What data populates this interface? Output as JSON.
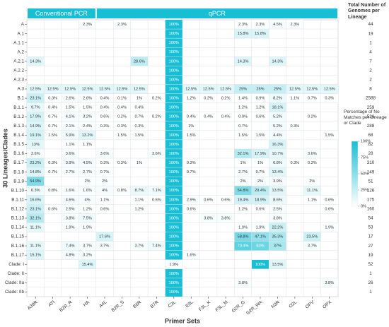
{
  "chart_data": {
    "type": "heatmap",
    "groups": [
      {
        "name": "Conventional PCR",
        "columns": [
          "A39R",
          "ATI",
          "B2R_R",
          "HA"
        ]
      },
      {
        "name": "qPCR",
        "columns": [
          "A4L",
          "B2R_S",
          "B6R",
          "B7R",
          "C3L",
          "E9L",
          "F3L_K",
          "F3L_M",
          "G2R_G",
          "G2R_WA",
          "N3R",
          "O2L",
          "OPV",
          "OPX"
        ]
      }
    ],
    "x_label": "Primer Sets",
    "y_label": "30 Lineages/Clades",
    "columns": [
      "A39R",
      "ATI",
      "B2R_R",
      "HA",
      "A4L",
      "B2R_S",
      "B6R",
      "B7R",
      "C3L",
      "E9L",
      "F3L_K",
      "F3L_M",
      "G2R_G",
      "G2R_WA",
      "N3R",
      "O2L",
      "OPV",
      "OPX"
    ],
    "rows": [
      "A",
      "A.1",
      "A.1.1",
      "A.2",
      "A.2.1",
      "A.2.2",
      "A.2.3",
      "A.3",
      "B.1",
      "B.1.1",
      "B.1.2",
      "B.1.3",
      "B.1.4",
      "B.1.5",
      "B.1.6",
      "B.1.7",
      "B.1.8",
      "B.1.9",
      "B.1.10",
      "B.1.11",
      "B.1.12",
      "B.1.13",
      "B.1.14",
      "B.1.15",
      "B.1.16",
      "B.1.17",
      "Clade: I",
      "Clade: II",
      "Clade: IIa",
      "Clade: IIb"
    ],
    "values": [
      [
        null,
        null,
        null,
        2.3,
        null,
        2.3,
        null,
        null,
        100,
        null,
        null,
        null,
        2.3,
        2.3,
        4.5,
        2.3,
        null,
        null
      ],
      [
        null,
        null,
        null,
        null,
        null,
        null,
        null,
        null,
        100,
        null,
        null,
        null,
        15.8,
        15.8,
        null,
        null,
        null,
        null
      ],
      [
        null,
        null,
        null,
        null,
        null,
        null,
        null,
        null,
        100,
        null,
        null,
        null,
        null,
        null,
        null,
        null,
        null,
        null
      ],
      [
        null,
        null,
        null,
        null,
        null,
        null,
        null,
        null,
        100,
        null,
        null,
        null,
        null,
        null,
        null,
        null,
        null,
        null
      ],
      [
        14.3,
        null,
        null,
        null,
        null,
        null,
        28.6,
        null,
        100,
        null,
        null,
        null,
        14.3,
        null,
        14.3,
        null,
        null,
        null
      ],
      [
        null,
        null,
        null,
        null,
        null,
        null,
        null,
        null,
        100,
        null,
        null,
        null,
        null,
        null,
        null,
        null,
        null,
        null
      ],
      [
        null,
        null,
        null,
        null,
        null,
        null,
        null,
        null,
        100,
        null,
        null,
        null,
        null,
        null,
        null,
        null,
        null,
        null
      ],
      [
        12.5,
        12.5,
        12.5,
        12.5,
        12.5,
        12.5,
        12.5,
        null,
        100,
        12.5,
        12.5,
        12.5,
        25,
        25,
        25,
        12.5,
        12.5,
        12.5
      ],
      [
        23.1,
        0.3,
        2.6,
        2.6,
        0.4,
        0.1,
        1,
        0.2,
        100,
        1.2,
        0.2,
        0.2,
        1.4,
        0.9,
        8.2,
        1.1,
        0.7,
        0.3
      ],
      [
        9.7,
        0.4,
        1.5,
        1.5,
        0.4,
        0.4,
        0.4,
        null,
        100,
        null,
        null,
        null,
        1.2,
        1.2,
        18.1,
        null,
        null,
        null
      ],
      [
        17.9,
        0.7,
        4.1,
        3.2,
        0.6,
        0.2,
        0.7,
        0.2,
        100,
        0.4,
        0.4,
        0.4,
        0.9,
        0.6,
        5.2,
        null,
        0.2,
        null
      ],
      [
        14.9,
        0.7,
        2.1,
        2.4,
        0.3,
        0.3,
        0.3,
        null,
        100,
        1,
        null,
        null,
        0.7,
        null,
        5.2,
        0.3,
        null,
        null
      ],
      [
        19.1,
        1.5,
        5.9,
        13.2,
        null,
        1.5,
        1.5,
        null,
        100,
        1.5,
        null,
        null,
        1.5,
        1.5,
        4.4,
        null,
        null,
        1.5
      ],
      [
        13,
        null,
        1.1,
        1.1,
        null,
        null,
        null,
        null,
        100,
        null,
        null,
        null,
        null,
        null,
        16.3,
        null,
        null,
        null
      ],
      [
        3.6,
        null,
        3.6,
        null,
        3.6,
        null,
        null,
        3.6,
        100,
        null,
        null,
        null,
        32.1,
        17.9,
        10.7,
        null,
        3.6,
        null
      ],
      [
        23.2,
        0.3,
        3.9,
        4.5,
        0.3,
        0.3,
        1,
        null,
        100,
        0.3,
        null,
        null,
        1,
        1,
        6.8,
        0.3,
        0.3,
        null
      ],
      [
        14.8,
        0.7,
        2.7,
        2.7,
        0.7,
        null,
        null,
        null,
        100,
        0.7,
        null,
        null,
        2.7,
        0.7,
        13.4,
        null,
        null,
        null
      ],
      [
        54.9,
        null,
        null,
        2,
        2,
        null,
        null,
        null,
        100,
        null,
        null,
        null,
        2,
        2,
        3.9,
        null,
        2,
        null
      ],
      [
        6.3,
        0.8,
        1.6,
        1.6,
        4,
        0.8,
        8.7,
        7.1,
        100,
        null,
        null,
        null,
        54.8,
        29.4,
        13.5,
        null,
        11.1,
        null
      ],
      [
        16.6,
        null,
        4.6,
        4,
        1.1,
        null,
        1.1,
        0.6,
        100,
        2.9,
        0.6,
        0.6,
        19.4,
        18.9,
        8.6,
        null,
        1.1,
        0.6
      ],
      [
        23.1,
        0.6,
        2.5,
        1.2,
        0.6,
        null,
        1.2,
        null,
        100,
        0.6,
        null,
        null,
        1.2,
        0.6,
        2.5,
        null,
        null,
        0.6
      ],
      [
        32.1,
        null,
        3.8,
        7.5,
        null,
        null,
        null,
        null,
        100,
        null,
        3.8,
        3.8,
        null,
        null,
        3.8,
        null,
        null,
        null
      ],
      [
        11.1,
        null,
        1.9,
        1.9,
        null,
        null,
        null,
        null,
        100,
        null,
        null,
        null,
        1.9,
        1.9,
        22.2,
        null,
        null,
        1.9
      ],
      [
        null,
        null,
        null,
        null,
        17.6,
        null,
        null,
        null,
        100,
        null,
        null,
        null,
        58.8,
        47.1,
        35.3,
        null,
        23.5,
        null
      ],
      [
        11.1,
        null,
        7.4,
        3.7,
        3.7,
        null,
        3.7,
        7.4,
        100,
        null,
        null,
        null,
        70.4,
        63,
        37,
        null,
        3.7,
        null
      ],
      [
        15.1,
        null,
        4.8,
        3.2,
        null,
        null,
        null,
        null,
        100,
        1.6,
        null,
        null,
        null,
        null,
        null,
        null,
        null,
        null
      ],
      [
        null,
        null,
        null,
        15.4,
        null,
        null,
        null,
        null,
        1.9,
        null,
        null,
        null,
        null,
        100,
        13.5,
        null,
        null,
        null
      ],
      [
        null,
        null,
        null,
        null,
        null,
        null,
        null,
        null,
        100,
        null,
        null,
        null,
        null,
        null,
        null,
        null,
        null,
        null
      ],
      [
        null,
        null,
        null,
        null,
        null,
        null,
        null,
        null,
        100,
        null,
        null,
        null,
        3.8,
        null,
        null,
        null,
        null,
        3.8
      ],
      [
        null,
        null,
        null,
        null,
        null,
        null,
        null,
        null,
        100,
        null,
        null,
        null,
        null,
        null,
        null,
        null,
        null,
        null
      ]
    ],
    "value_labels": [
      [
        null,
        null,
        null,
        "2.3%",
        null,
        "2.3%",
        null,
        null,
        "100%",
        null,
        null,
        null,
        "2.3%",
        "2.3%",
        "4.5%",
        "2.3%",
        null,
        null
      ],
      [
        null,
        null,
        null,
        null,
        null,
        null,
        null,
        null,
        "100%",
        null,
        null,
        null,
        "15.8%",
        "15.8%",
        null,
        null,
        null,
        null
      ],
      [
        null,
        null,
        null,
        null,
        null,
        null,
        null,
        null,
        "100%",
        null,
        null,
        null,
        null,
        null,
        null,
        null,
        null,
        null
      ],
      [
        null,
        null,
        null,
        null,
        null,
        null,
        null,
        null,
        "100%",
        null,
        null,
        null,
        null,
        null,
        null,
        null,
        null,
        null
      ],
      [
        "14.3%",
        null,
        null,
        null,
        null,
        null,
        "28.6%",
        null,
        "100%",
        null,
        null,
        null,
        "14.3%",
        null,
        "14.3%",
        null,
        null,
        null
      ],
      [
        null,
        null,
        null,
        null,
        null,
        null,
        null,
        null,
        "100%",
        null,
        null,
        null,
        null,
        null,
        null,
        null,
        null,
        null
      ],
      [
        null,
        null,
        null,
        null,
        null,
        null,
        null,
        null,
        "100%",
        null,
        null,
        null,
        null,
        null,
        null,
        null,
        null,
        null
      ],
      [
        "12.5%",
        "12.5%",
        "12.5%",
        "12.5%",
        "12.5%",
        "12.5%",
        "12.5%",
        null,
        "100%",
        "12.5%",
        "12.5%",
        "12.5%",
        "25%",
        "25%",
        "25%",
        "12.5%",
        "12.5%",
        "12.5%"
      ],
      [
        "23.1%",
        "0.3%",
        "2.6%",
        "2.6%",
        "0.4%",
        "0.1%",
        "1%",
        "0.2%",
        "100%",
        "1.2%",
        "0.2%",
        "0.2%",
        "1.4%",
        "0.9%",
        "8.2%",
        "1.1%",
        "0.7%",
        "0.3%"
      ],
      [
        "9.7%",
        "0.4%",
        "1.5%",
        "1.5%",
        "0.4%",
        "0.4%",
        "0.4%",
        null,
        "100%",
        null,
        null,
        null,
        "1.2%",
        "1.2%",
        "18.1%",
        null,
        null,
        null
      ],
      [
        "17.9%",
        "0.7%",
        "4.1%",
        "3.2%",
        "0.6%",
        "0.2%",
        "0.7%",
        "0.2%",
        "100%",
        "0.4%",
        "0.4%",
        "0.4%",
        "0.9%",
        "0.6%",
        "5.2%",
        null,
        "0.2%",
        null
      ],
      [
        "14.9%",
        "0.7%",
        "2.1%",
        "2.4%",
        "0.3%",
        "0.3%",
        "0.3%",
        null,
        "100%",
        "1%",
        null,
        null,
        "0.7%",
        null,
        "5.2%",
        "0.3%",
        null,
        null
      ],
      [
        "19.1%",
        "1.5%",
        "5.9%",
        "13.2%",
        null,
        "1.5%",
        "1.5%",
        null,
        "100%",
        "1.5%",
        null,
        null,
        "1.5%",
        "1.5%",
        "4.4%",
        null,
        null,
        "1.5%"
      ],
      [
        "13%",
        null,
        "1.1%",
        "1.1%",
        null,
        null,
        null,
        null,
        "100%",
        null,
        null,
        null,
        null,
        null,
        "16.3%",
        null,
        null,
        null
      ],
      [
        "3.6%",
        null,
        "3.6%",
        null,
        "3.6%",
        null,
        null,
        "3.6%",
        "100%",
        null,
        null,
        null,
        "32.1%",
        "17.9%",
        "10.7%",
        null,
        "3.6%",
        null
      ],
      [
        "23.2%",
        "0.3%",
        "3.9%",
        "4.5%",
        "0.3%",
        "0.3%",
        "1%",
        null,
        "100%",
        "0.3%",
        null,
        null,
        "1%",
        "1%",
        "6.8%",
        "0.3%",
        "0.3%",
        null
      ],
      [
        "14.8%",
        "0.7%",
        "2.7%",
        "2.7%",
        "0.7%",
        null,
        null,
        null,
        "100%",
        "0.7%",
        null,
        null,
        "2.7%",
        "0.7%",
        "13.4%",
        null,
        null,
        null
      ],
      [
        "54.9%",
        null,
        null,
        "2%",
        "2%",
        null,
        null,
        null,
        "100%",
        null,
        null,
        null,
        "2%",
        "2%",
        "3.9%",
        null,
        "2%",
        null
      ],
      [
        "6.3%",
        "0.8%",
        "1.6%",
        "1.6%",
        "4%",
        "0.8%",
        "8.7%",
        "7.1%",
        "100%",
        null,
        null,
        null,
        "54.8%",
        "29.4%",
        "13.5%",
        null,
        "11.1%",
        null
      ],
      [
        "16.6%",
        null,
        "4.6%",
        "4%",
        "1.1%",
        null,
        "1.1%",
        "0.6%",
        "100%",
        "2.9%",
        "0.6%",
        "0.6%",
        "19.4%",
        "18.9%",
        "8.6%",
        null,
        "1.1%",
        "0.6%"
      ],
      [
        "23.1%",
        "0.6%",
        "2.5%",
        "1.2%",
        "0.6%",
        null,
        "1.2%",
        null,
        "100%",
        "0.6%",
        null,
        null,
        "1.2%",
        "0.6%",
        "2.5%",
        null,
        null,
        "0.6%"
      ],
      [
        "32.1%",
        null,
        "3.8%",
        "7.5%",
        null,
        null,
        null,
        null,
        "100%",
        null,
        "3.8%",
        "3.8%",
        null,
        null,
        "3.8%",
        null,
        null,
        null
      ],
      [
        "11.1%",
        null,
        "1.9%",
        "1.9%",
        null,
        null,
        null,
        null,
        "100%",
        null,
        null,
        null,
        "1.9%",
        "1.9%",
        "22.2%",
        null,
        null,
        "1.9%"
      ],
      [
        null,
        null,
        null,
        null,
        "17.6%",
        null,
        null,
        null,
        "100%",
        null,
        null,
        null,
        "58.8%",
        "47.1%",
        "35.3%",
        null,
        "23.5%",
        null
      ],
      [
        "11.1%",
        null,
        "7.4%",
        "3.7%",
        "3.7%",
        null,
        "3.7%",
        "7.4%",
        "100%",
        null,
        null,
        null,
        "70.4%",
        "63%",
        "37%",
        null,
        "3.7%",
        null
      ],
      [
        "15.1%",
        null,
        "4.8%",
        "3.2%",
        null,
        null,
        null,
        null,
        "100%",
        "1.6%",
        null,
        null,
        null,
        null,
        null,
        null,
        null,
        null
      ],
      [
        null,
        null,
        null,
        "15.4%",
        null,
        null,
        null,
        null,
        "1.9%",
        null,
        null,
        null,
        null,
        "100%",
        "13.5%",
        null,
        null,
        null
      ],
      [
        null,
        null,
        null,
        null,
        null,
        null,
        null,
        null,
        "100%",
        null,
        null,
        null,
        null,
        null,
        null,
        null,
        null,
        null
      ],
      [
        null,
        null,
        null,
        null,
        null,
        null,
        null,
        null,
        "100%",
        null,
        null,
        null,
        "3.8%",
        null,
        null,
        null,
        null,
        "3.8%"
      ],
      [
        null,
        null,
        null,
        null,
        null,
        null,
        null,
        null,
        "100%",
        null,
        null,
        null,
        null,
        null,
        null,
        null,
        null,
        null
      ]
    ],
    "totals_title": "Total Number of Genomes per Lineage",
    "totals": [
      44,
      19,
      1,
      4,
      7,
      2,
      2,
      8,
      2588,
      259,
      536,
      288,
      68,
      82,
      28,
      310,
      149,
      51,
      126,
      175,
      160,
      54,
      53,
      17,
      27,
      19,
      52,
      1,
      26,
      1
    ],
    "colorbar_title": "Percentage of No Matches per Lineage or Clade",
    "clim": [
      0,
      100
    ],
    "cticks": [
      {
        "value": 0,
        "label": "0%"
      },
      {
        "value": 25,
        "label": "25%"
      },
      {
        "value": 50,
        "label": "50%"
      },
      {
        "value": 75,
        "label": "75%"
      },
      {
        "value": 100,
        "label": "100%"
      }
    ],
    "colors": [
      "#ffffff",
      "#17bed4"
    ]
  }
}
